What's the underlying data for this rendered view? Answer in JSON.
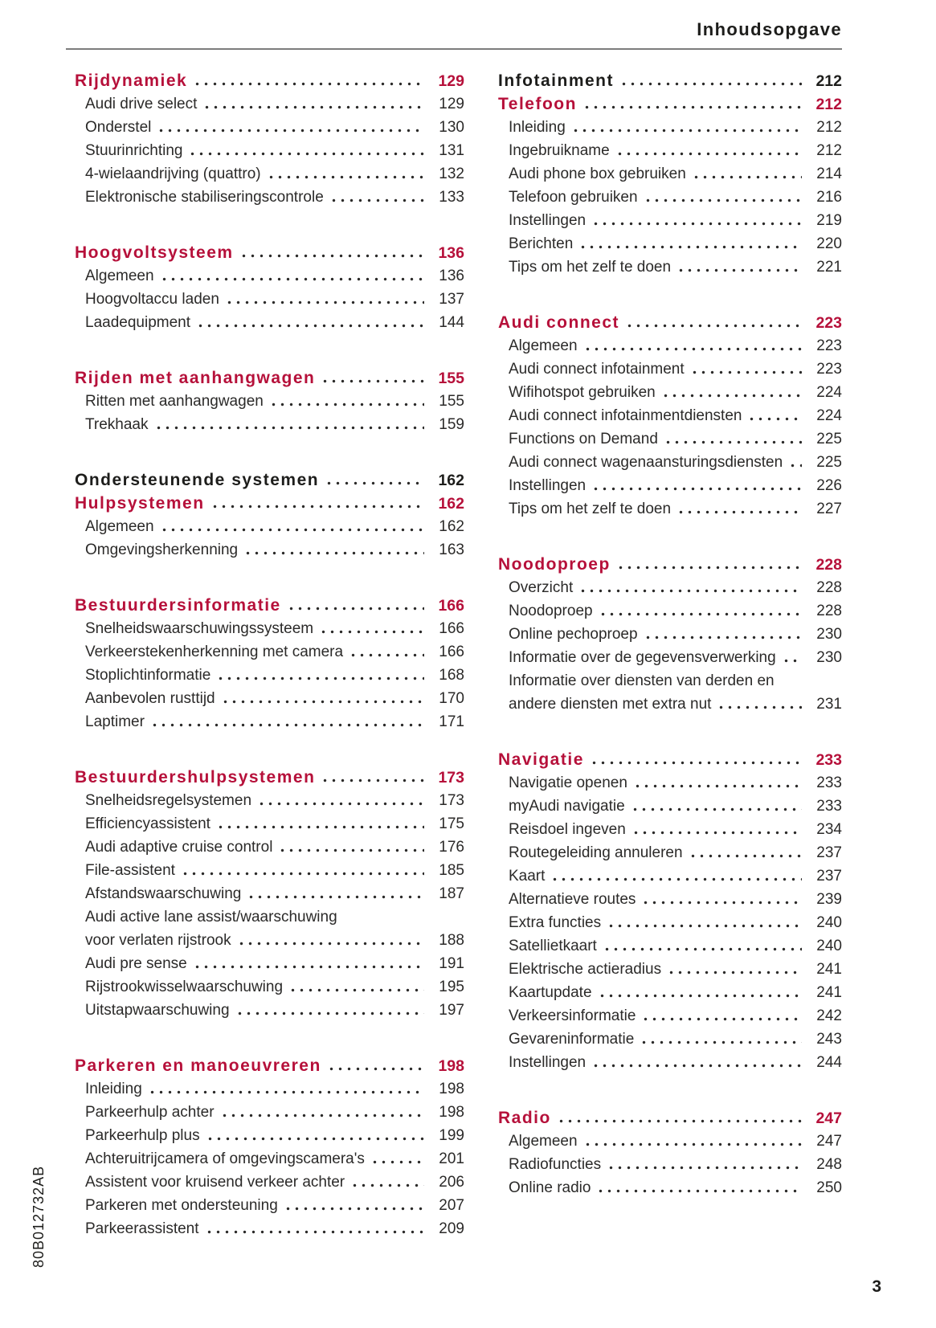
{
  "page": {
    "header_title": "Inhoudsopgave",
    "footer_page_number": "3",
    "print_code": "80B012732AB",
    "accent_red": "#b6103a",
    "text_dark": "#1d1d1b"
  },
  "toc": {
    "columns": [
      {
        "sections": [
          {
            "rows": [
              {
                "style": "head-red",
                "label": "Rijdynamiek",
                "page": "129"
              },
              {
                "style": "item",
                "label": "Audi drive select",
                "page": "129"
              },
              {
                "style": "item",
                "label": "Onderstel",
                "page": "130"
              },
              {
                "style": "item",
                "label": "Stuurinrichting",
                "page": "131"
              },
              {
                "style": "item",
                "label": "4-wielaandrijving (quattro)",
                "page": "132"
              },
              {
                "style": "item",
                "label": "Elektronische stabiliseringscontrole",
                "page": "133"
              }
            ]
          },
          {
            "rows": [
              {
                "style": "head-red",
                "label": "Hoogvoltsysteem",
                "page": "136"
              },
              {
                "style": "item",
                "label": "Algemeen",
                "page": "136"
              },
              {
                "style": "item",
                "label": "Hoogvoltaccu laden",
                "page": "137"
              },
              {
                "style": "item",
                "label": "Laadequipment",
                "page": "144"
              }
            ]
          },
          {
            "rows": [
              {
                "style": "head-red",
                "label": "Rijden met aanhangwagen",
                "page": "155"
              },
              {
                "style": "item",
                "label": "Ritten met aanhangwagen",
                "page": "155"
              },
              {
                "style": "item",
                "label": "Trekhaak",
                "page": "159"
              }
            ]
          },
          {
            "rows": [
              {
                "style": "head-black",
                "label": "Ondersteunende systemen",
                "page": "162"
              },
              {
                "style": "head-red",
                "label": "Hulpsystemen",
                "page": "162"
              },
              {
                "style": "item",
                "label": "Algemeen",
                "page": "162"
              },
              {
                "style": "item",
                "label": "Omgevingsherkenning",
                "page": "163"
              }
            ]
          },
          {
            "rows": [
              {
                "style": "head-red",
                "label": "Bestuurdersinformatie",
                "page": "166"
              },
              {
                "style": "item",
                "label": "Snelheidswaarschuwingssysteem",
                "page": "166"
              },
              {
                "style": "item",
                "label": "Verkeerstekenherkenning met camera",
                "page": "166"
              },
              {
                "style": "item",
                "label": "Stoplichtinformatie",
                "page": "168"
              },
              {
                "style": "item",
                "label": "Aanbevolen rusttijd",
                "page": "170"
              },
              {
                "style": "item",
                "label": "Laptimer",
                "page": "171"
              }
            ]
          },
          {
            "rows": [
              {
                "style": "head-red",
                "label": "Bestuurdershulpsystemen",
                "page": "173"
              },
              {
                "style": "item",
                "label": "Snelheidsregelsystemen",
                "page": "173"
              },
              {
                "style": "item",
                "label": "Efficiencyassistent",
                "page": "175"
              },
              {
                "style": "item",
                "label": "Audi adaptive cruise control",
                "page": "176"
              },
              {
                "style": "item",
                "label": "File-assistent",
                "page": "185"
              },
              {
                "style": "item",
                "label": "Afstandswaarschuwing",
                "page": "187"
              },
              {
                "style": "item",
                "label": "Audi active lane assist/waarschuwing",
                "label2": "voor verlaten rijstrook",
                "page": "188"
              },
              {
                "style": "item",
                "label": "Audi pre sense",
                "page": "191"
              },
              {
                "style": "item",
                "label": "Rijstrookwisselwaarschuwing",
                "page": "195"
              },
              {
                "style": "item",
                "label": "Uitstapwaarschuwing",
                "page": "197"
              }
            ]
          },
          {
            "rows": [
              {
                "style": "head-red",
                "label": "Parkeren en manoeuvreren",
                "page": "198"
              },
              {
                "style": "item",
                "label": "Inleiding",
                "page": "198"
              },
              {
                "style": "item",
                "label": "Parkeerhulp achter",
                "page": "198"
              },
              {
                "style": "item",
                "label": "Parkeerhulp plus",
                "page": "199"
              },
              {
                "style": "item",
                "label": "Achteruitrijcamera of omgevingscamera's",
                "page": "201"
              },
              {
                "style": "item",
                "label": "Assistent voor kruisend verkeer achter",
                "page": "206"
              },
              {
                "style": "item",
                "label": "Parkeren met ondersteuning",
                "page": "207"
              },
              {
                "style": "item",
                "label": "Parkeerassistent",
                "page": "209"
              }
            ]
          }
        ]
      },
      {
        "sections": [
          {
            "rows": [
              {
                "style": "head-black",
                "label": "Infotainment",
                "page": "212"
              },
              {
                "style": "head-red",
                "label": "Telefoon",
                "page": "212"
              },
              {
                "style": "item",
                "label": "Inleiding",
                "page": "212"
              },
              {
                "style": "item",
                "label": "Ingebruikname",
                "page": "212"
              },
              {
                "style": "item",
                "label": "Audi phone box gebruiken",
                "page": "214"
              },
              {
                "style": "item",
                "label": "Telefoon gebruiken",
                "page": "216"
              },
              {
                "style": "item",
                "label": "Instellingen",
                "page": "219"
              },
              {
                "style": "item",
                "label": "Berichten",
                "page": "220"
              },
              {
                "style": "item",
                "label": "Tips om het zelf te doen",
                "page": "221"
              }
            ]
          },
          {
            "rows": [
              {
                "style": "head-red",
                "label": "Audi connect",
                "page": "223"
              },
              {
                "style": "item",
                "label": "Algemeen",
                "page": "223"
              },
              {
                "style": "item",
                "label": "Audi connect infotainment",
                "page": "223"
              },
              {
                "style": "item",
                "label": "Wifihotspot gebruiken",
                "page": "224"
              },
              {
                "style": "item",
                "label": "Audi connect infotainmentdiensten",
                "page": "224"
              },
              {
                "style": "item",
                "label": "Functions on Demand",
                "page": "225"
              },
              {
                "style": "item",
                "label": "Audi connect wagenaansturingsdiensten",
                "page": "225"
              },
              {
                "style": "item",
                "label": "Instellingen",
                "page": "226"
              },
              {
                "style": "item",
                "label": "Tips om het zelf te doen",
                "page": "227"
              }
            ]
          },
          {
            "rows": [
              {
                "style": "head-red",
                "label": "Noodoproep",
                "page": "228"
              },
              {
                "style": "item",
                "label": "Overzicht",
                "page": "228"
              },
              {
                "style": "item",
                "label": "Noodoproep",
                "page": "228"
              },
              {
                "style": "item",
                "label": "Online pechoproep",
                "page": "230"
              },
              {
                "style": "item",
                "label": "Informatie over de gegevensverwerking",
                "page": "230"
              },
              {
                "style": "item",
                "label": "Informatie over diensten van derden en",
                "label2": "andere diensten met extra nut",
                "page": "231"
              }
            ]
          },
          {
            "rows": [
              {
                "style": "head-red",
                "label": "Navigatie",
                "page": "233"
              },
              {
                "style": "item",
                "label": "Navigatie openen",
                "page": "233"
              },
              {
                "style": "item",
                "label": "myAudi navigatie",
                "page": "233"
              },
              {
                "style": "item",
                "label": "Reisdoel ingeven",
                "page": "234"
              },
              {
                "style": "item",
                "label": "Routegeleiding annuleren",
                "page": "237"
              },
              {
                "style": "item",
                "label": "Kaart",
                "page": "237"
              },
              {
                "style": "item",
                "label": "Alternatieve routes",
                "page": "239"
              },
              {
                "style": "item",
                "label": "Extra functies",
                "page": "240"
              },
              {
                "style": "item",
                "label": "Satellietkaart",
                "page": "240"
              },
              {
                "style": "item",
                "label": "Elektrische actieradius",
                "page": "241"
              },
              {
                "style": "item",
                "label": "Kaartupdate",
                "page": "241"
              },
              {
                "style": "item",
                "label": "Verkeersinformatie",
                "page": "242"
              },
              {
                "style": "item",
                "label": "Gevareninformatie",
                "page": "243"
              },
              {
                "style": "item",
                "label": "Instellingen",
                "page": "244"
              }
            ]
          },
          {
            "rows": [
              {
                "style": "head-red",
                "label": "Radio",
                "page": "247"
              },
              {
                "style": "item",
                "label": "Algemeen",
                "page": "247"
              },
              {
                "style": "item",
                "label": "Radiofuncties",
                "page": "248"
              },
              {
                "style": "item",
                "label": "Online radio",
                "page": "250"
              }
            ]
          }
        ]
      }
    ]
  }
}
